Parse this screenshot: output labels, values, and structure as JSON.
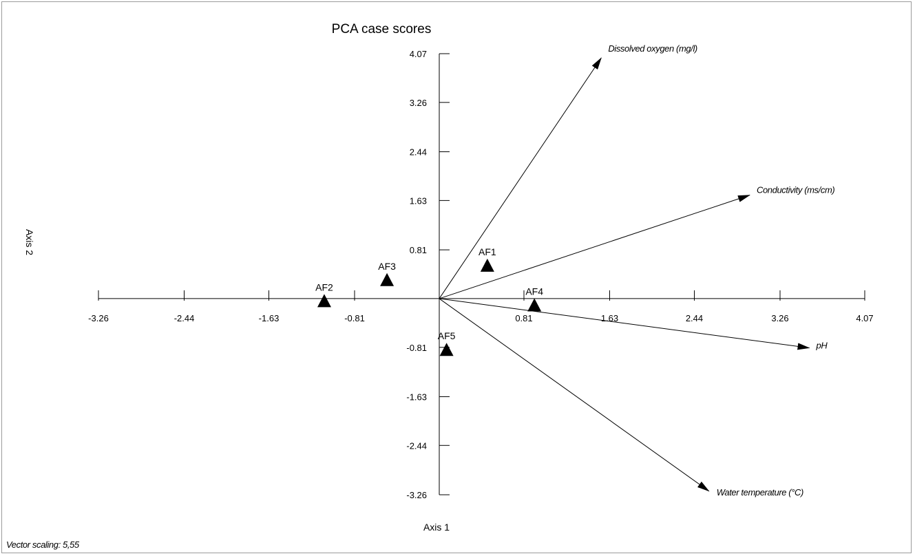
{
  "chart_data": {
    "type": "scatter",
    "title": "PCA case scores",
    "xlabel": "Axis 1",
    "ylabel": "Axis 2",
    "xlim": [
      -3.26,
      4.07
    ],
    "ylim": [
      -3.26,
      4.07
    ],
    "x_ticks": [
      "-3.26",
      "-2.44",
      "-1.63",
      "-0.81",
      "0.81",
      "1.63",
      "2.44",
      "3.26",
      "4.07"
    ],
    "y_ticks": [
      "4.07",
      "3.26",
      "2.44",
      "1.63",
      "0.81",
      "-0.81",
      "-1.63",
      "-2.44",
      "-3.26"
    ],
    "grid": false,
    "points": [
      {
        "label": "AF1",
        "x": 0.46,
        "y": 0.55
      },
      {
        "label": "AF2",
        "x": -1.1,
        "y": -0.04
      },
      {
        "label": "AF3",
        "x": -0.5,
        "y": 0.31
      },
      {
        "label": "AF4",
        "x": 0.91,
        "y": -0.11
      },
      {
        "label": "AF5",
        "x": 0.07,
        "y": -0.85
      }
    ],
    "vectors": [
      {
        "label": "Dissolved oxygen (mg/l)",
        "x": 1.55,
        "y": 4.0
      },
      {
        "label": "Conductivity (ms/cm)",
        "x": 2.97,
        "y": 1.72
      },
      {
        "label": "pH",
        "x": 3.54,
        "y": -0.82
      },
      {
        "label": "Water temperature (°C)",
        "x": 2.58,
        "y": -3.2
      }
    ],
    "footnote": "Vector scaling: 5,55"
  }
}
